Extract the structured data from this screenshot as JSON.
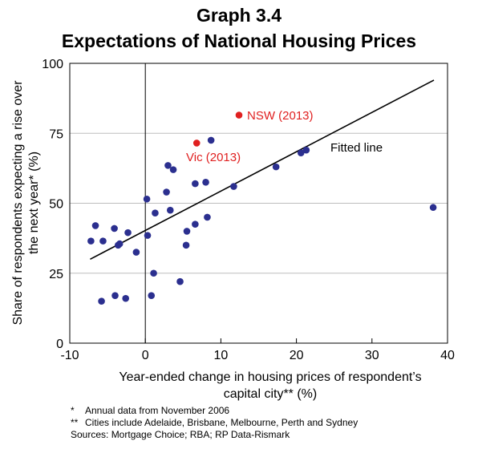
{
  "chart_data": {
    "type": "scatter",
    "title": "Graph 3.4",
    "subtitle": "Expectations of National Housing Prices",
    "xlabel_lines": [
      "Year-ended change in housing prices of respondent’s",
      "capital city** (%)"
    ],
    "ylabel_lines": [
      "Share of respondents expecting a rise over",
      "the next year* (%)"
    ],
    "xlim": [
      -10,
      40
    ],
    "ylim": [
      0,
      100
    ],
    "xticks": [
      -10,
      0,
      10,
      20,
      30,
      40
    ],
    "yticks": [
      0,
      25,
      50,
      75,
      100
    ],
    "grid": "horizontal",
    "series": [
      {
        "color": "#2b2f8f",
        "points": [
          [
            -7.2,
            36.5
          ],
          [
            -6.6,
            42
          ],
          [
            -5.6,
            36.5
          ],
          [
            -5.8,
            15
          ],
          [
            -4.1,
            41
          ],
          [
            -4.0,
            17
          ],
          [
            -3.6,
            35
          ],
          [
            -3.4,
            35.5
          ],
          [
            -2.6,
            16
          ],
          [
            -2.3,
            39.5
          ],
          [
            -1.2,
            32.5
          ],
          [
            0.2,
            51.5
          ],
          [
            0.3,
            38.5
          ],
          [
            0.8,
            17
          ],
          [
            1.1,
            25
          ],
          [
            1.3,
            46.5
          ],
          [
            2.8,
            54
          ],
          [
            3.0,
            63.5
          ],
          [
            3.3,
            47.5
          ],
          [
            3.7,
            62
          ],
          [
            4.6,
            22
          ],
          [
            5.4,
            35
          ],
          [
            5.5,
            40
          ],
          [
            6.6,
            42.5
          ],
          [
            6.6,
            57
          ],
          [
            8.0,
            57.5
          ],
          [
            8.2,
            45
          ],
          [
            8.7,
            72.5
          ],
          [
            11.7,
            56
          ],
          [
            17.3,
            63
          ],
          [
            20.6,
            68
          ],
          [
            21.3,
            69
          ],
          [
            38.1,
            48.5
          ]
        ]
      },
      {
        "name": "NSW (2013)",
        "color": "#e02020",
        "points": [
          [
            12.4,
            81.5
          ]
        ]
      },
      {
        "name": "Vic (2013)",
        "color": "#e02020",
        "points": [
          [
            6.8,
            71.5
          ]
        ]
      }
    ],
    "fitted_line": {
      "name": "Fitted line",
      "color": "#000000",
      "from": [
        -7.3,
        30
      ],
      "to": [
        38.2,
        94
      ]
    }
  },
  "footnotes": [
    {
      "mark": "*",
      "text": "Annual data from November 2006"
    },
    {
      "mark": "**",
      "text": "Cities include Adelaide, Brisbane, Melbourne, Perth and Sydney"
    }
  ],
  "sources": "Sources: Mortgage Choice; RBA; RP Data-Rismark"
}
